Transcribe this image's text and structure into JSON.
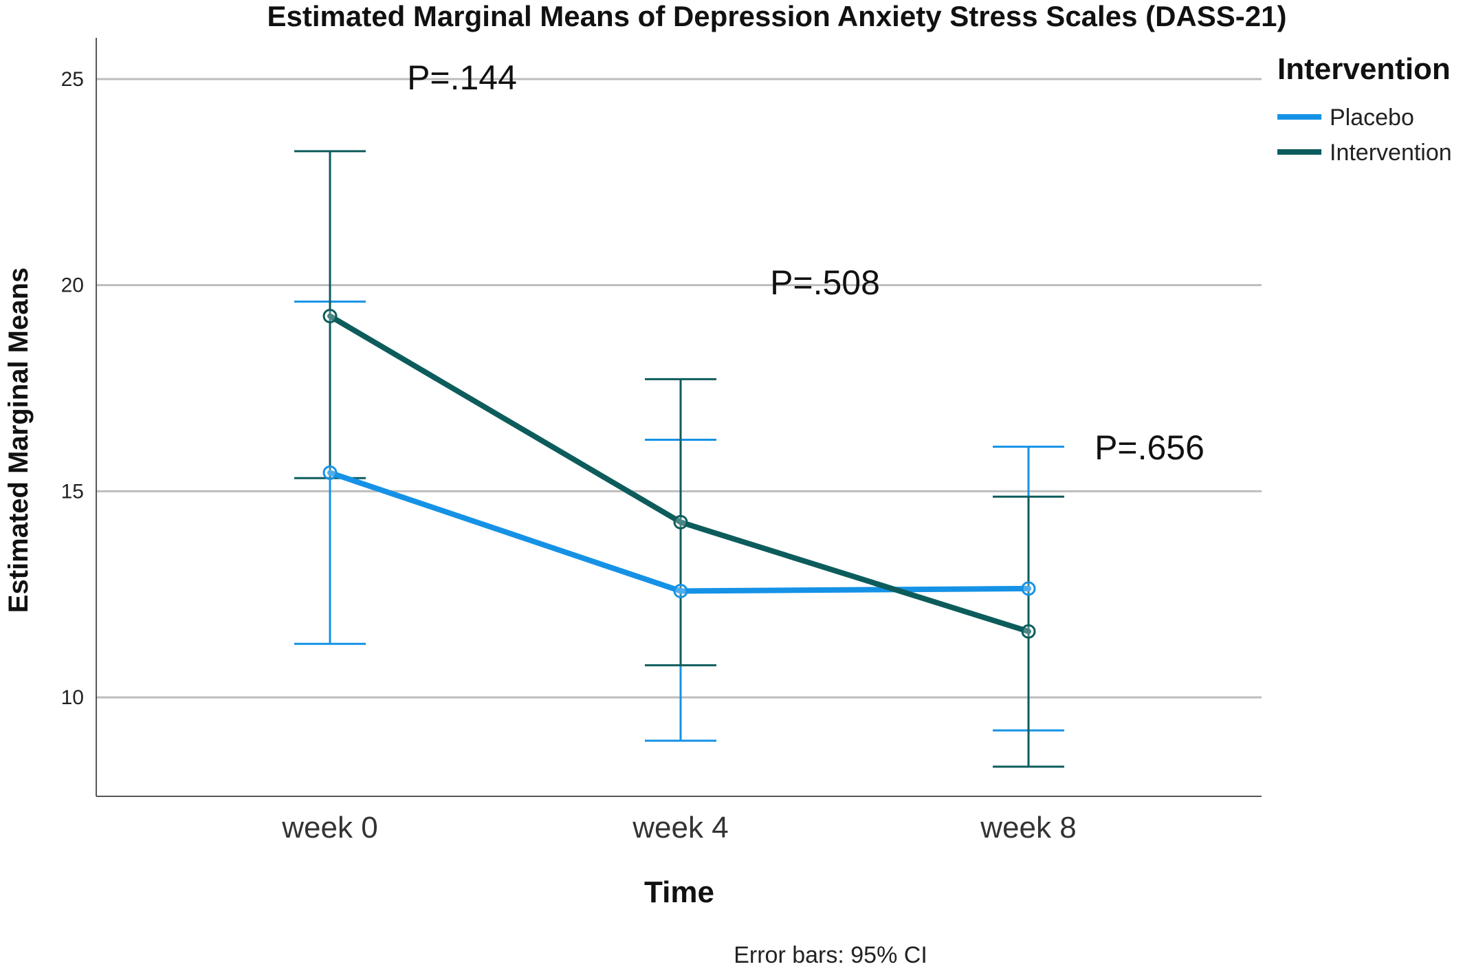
{
  "chart_data": {
    "type": "line",
    "title": "Estimated Marginal Means of Depression Anxiety Stress Scales (DASS-21)",
    "xlabel": "Time",
    "ylabel": "Estimated Marginal Means",
    "categories": [
      "week 0",
      "week 4",
      "week 8"
    ],
    "ylim": [
      7.6,
      26.0
    ],
    "yticks": [
      10,
      15,
      20,
      25
    ],
    "grid": true,
    "legend": {
      "title": "Intervention",
      "placement": "top-right"
    },
    "series": [
      {
        "name": "Placebo",
        "color": "#1592e6",
        "values": [
          15.45,
          12.58,
          12.64
        ],
        "ci_low": [
          11.3,
          8.95,
          9.2
        ],
        "ci_high": [
          19.6,
          16.25,
          16.08
        ]
      },
      {
        "name": "Intervention",
        "color": "#0d5c5c",
        "values": [
          19.25,
          14.25,
          11.6
        ],
        "ci_low": [
          15.32,
          10.78,
          8.32
        ],
        "ci_high": [
          23.25,
          17.72,
          14.87
        ]
      }
    ],
    "annotations": [
      {
        "text": "P=.144",
        "category": "week 0"
      },
      {
        "text": "P=.508",
        "category": "week 4"
      },
      {
        "text": "P=.656",
        "category": "week 8"
      }
    ],
    "footnote": "Error bars: 95% CI"
  }
}
